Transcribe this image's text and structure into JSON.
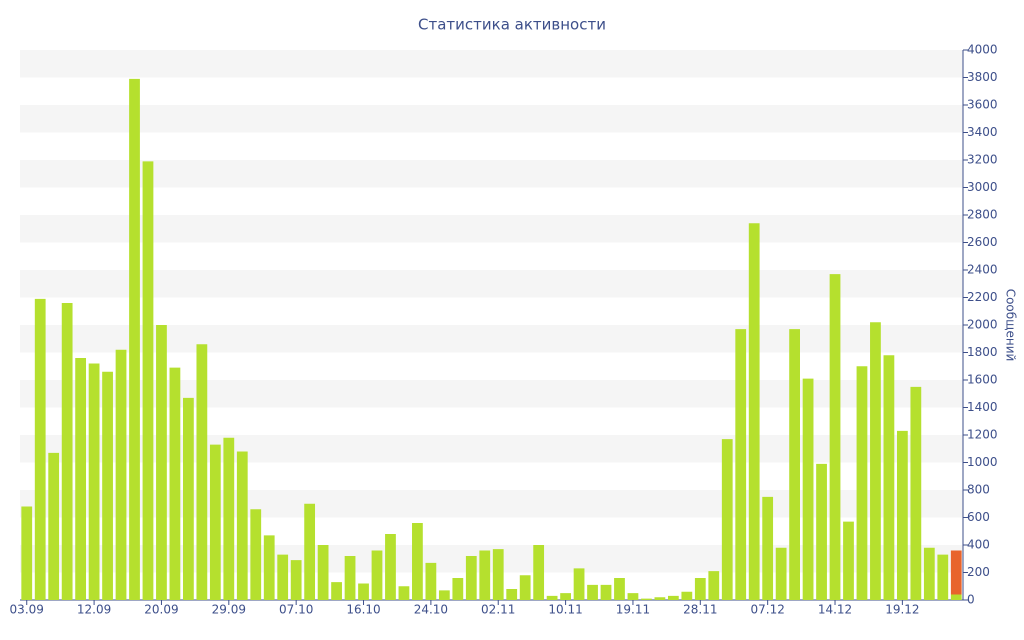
{
  "chart_data": {
    "type": "bar",
    "title": "Статистика активности",
    "y_label": "Сообщений",
    "categories": [
      "03.09",
      null,
      null,
      null,
      null,
      "12.09",
      null,
      null,
      null,
      null,
      "20.09",
      null,
      null,
      null,
      null,
      "29.09",
      null,
      null,
      null,
      null,
      "07.10",
      null,
      null,
      null,
      null,
      "16.10",
      null,
      null,
      null,
      null,
      "24.10",
      null,
      null,
      null,
      null,
      "02.11",
      null,
      null,
      null,
      null,
      "10.11",
      null,
      null,
      null,
      null,
      "19.11",
      null,
      null,
      null,
      null,
      "28.11",
      null,
      null,
      null,
      null,
      "07.12",
      null,
      null,
      null,
      null,
      "14.12",
      null,
      null,
      null,
      null,
      "19.12",
      null,
      null,
      null,
      null
    ],
    "series": [
      {
        "color": "#b5e02e",
        "values": [
          680,
          2190,
          1070,
          2160,
          1760,
          1720,
          1660,
          1820,
          3790,
          3190,
          2000,
          1690,
          1470,
          1860,
          1130,
          1180,
          1080,
          660,
          470,
          330,
          290,
          700,
          400,
          130,
          320,
          120,
          360,
          480,
          100,
          560,
          270,
          70,
          160,
          320,
          360,
          370,
          80,
          180,
          400,
          30,
          50,
          230,
          110,
          110,
          160,
          50,
          10,
          20,
          30,
          60,
          160,
          210,
          1170,
          1970,
          2740,
          750,
          380,
          1970,
          1610,
          990,
          2370,
          570,
          1700,
          2020,
          1780,
          1230,
          1550,
          380,
          330,
          40
        ]
      },
      {
        "color": "#e8642c",
        "values": [
          null,
          null,
          null,
          null,
          null,
          null,
          null,
          null,
          null,
          null,
          null,
          null,
          null,
          null,
          null,
          null,
          null,
          null,
          null,
          null,
          null,
          null,
          null,
          null,
          null,
          null,
          null,
          null,
          null,
          null,
          null,
          null,
          null,
          null,
          null,
          null,
          null,
          null,
          null,
          null,
          null,
          null,
          null,
          null,
          null,
          null,
          null,
          null,
          null,
          null,
          null,
          null,
          null,
          null,
          null,
          null,
          null,
          null,
          null,
          null,
          null,
          null,
          null,
          null,
          null,
          null,
          null,
          null,
          null,
          320
        ]
      }
    ],
    "stacked": true,
    "y_axis_side": "right",
    "ylim": [
      0,
      4000
    ],
    "yticks": [
      0,
      200,
      400,
      600,
      800,
      1000,
      1200,
      1400,
      1600,
      1800,
      2000,
      2200,
      2400,
      2600,
      2800,
      3000,
      3200,
      3400,
      3600,
      3800,
      4000
    ],
    "grid": "bands"
  }
}
